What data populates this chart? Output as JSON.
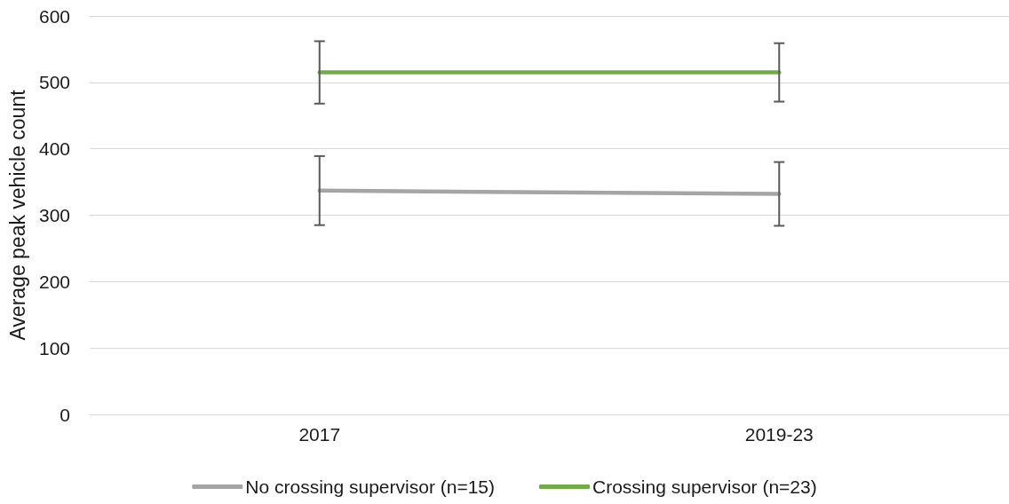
{
  "chart_data": {
    "type": "line",
    "ylabel": "Average peak vehicle count",
    "categories": [
      "2017",
      "2019-23"
    ],
    "series": [
      {
        "name": "No crossing supervisor (n=15)",
        "color": "#a5a5a5",
        "values": [
          337,
          332
        ],
        "errors": [
          52,
          48
        ]
      },
      {
        "name": "Crossing supervisor (n=23)",
        "color": "#70ad47",
        "values": [
          515,
          515
        ],
        "errors": [
          47,
          44
        ]
      }
    ],
    "ylim": [
      0,
      600
    ],
    "yticks": [
      0,
      100,
      200,
      300,
      400,
      500,
      600
    ],
    "grid": "y",
    "legend": "bottom",
    "marker": "none",
    "line_style": "solid"
  }
}
